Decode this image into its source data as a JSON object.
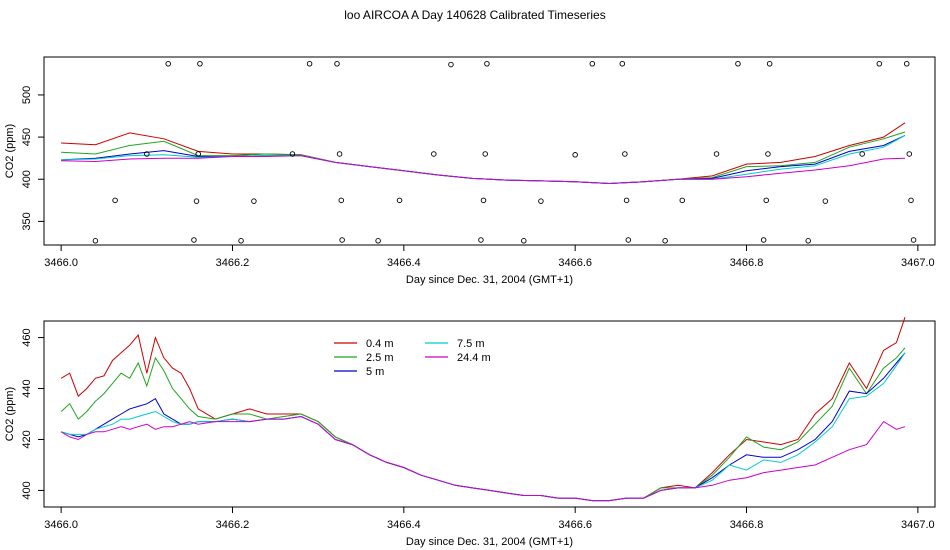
{
  "title": "loo AIRCOA A  Day 140628  Calibrated Timeseries",
  "colors": {
    "0.4 m": "#cc0000",
    "2.5 m": "#1fa51f",
    "5 m": "#0000cc",
    "7.5 m": "#00cccc",
    "24.4 m": "#cc00cc"
  },
  "chart_data": [
    {
      "type": "line",
      "xlabel": "Day since Dec. 31, 2004 (GMT+1)",
      "ylabel": "CO2 (ppm)",
      "xlim": [
        3465.98,
        3467.02
      ],
      "ylim": [
        322,
        545
      ],
      "xticks": [
        "3466.0",
        "3466.2",
        "3466.4",
        "3466.6",
        "3466.8",
        "3467.0"
      ],
      "yticks": [
        "350",
        "400",
        "450",
        "500"
      ],
      "x": [
        3466.0,
        3466.04,
        3466.08,
        3466.12,
        3466.16,
        3466.2,
        3466.24,
        3466.28,
        3466.32,
        3466.36,
        3466.4,
        3466.44,
        3466.48,
        3466.52,
        3466.56,
        3466.6,
        3466.64,
        3466.68,
        3466.72,
        3466.76,
        3466.8,
        3466.84,
        3466.88,
        3466.92,
        3466.96,
        3466.985
      ],
      "series": [
        {
          "name": "0.4 m",
          "values": [
            443,
            441,
            455,
            448,
            433,
            430,
            430,
            429,
            420,
            415,
            410,
            405,
            401,
            399,
            398,
            397,
            395,
            397,
            400,
            404,
            418,
            420,
            427,
            440,
            450,
            467
          ]
        },
        {
          "name": "2.5 m",
          "values": [
            432,
            430,
            440,
            445,
            428,
            428,
            430,
            429,
            420,
            415,
            410,
            405,
            401,
            399,
            398,
            397,
            395,
            397,
            400,
            402,
            415,
            416,
            420,
            438,
            448,
            456
          ]
        },
        {
          "name": "5 m",
          "values": [
            423,
            425,
            430,
            434,
            427,
            427,
            428,
            428,
            420,
            415,
            410,
            405,
            401,
            399,
            398,
            397,
            395,
            397,
            400,
            401,
            410,
            415,
            418,
            433,
            440,
            452
          ]
        },
        {
          "name": "7.5 m",
          "values": [
            423,
            424,
            428,
            429,
            426,
            427,
            428,
            428,
            420,
            415,
            410,
            405,
            401,
            399,
            398,
            397,
            395,
            397,
            400,
            400,
            406,
            412,
            416,
            430,
            438,
            452
          ]
        },
        {
          "name": "24.4 m",
          "values": [
            422,
            421,
            424,
            425,
            425,
            427,
            427,
            428,
            420,
            415,
            410,
            405,
            401,
            399,
            398,
            397,
            395,
            397,
            400,
            400,
            403,
            407,
            411,
            416,
            424,
            425
          ]
        }
      ],
      "markers": {
        "type": "scatter",
        "x": [
          3466.04,
          3466.063,
          3466.1,
          3466.125,
          3466.155,
          3466.158,
          3466.16,
          3466.162,
          3466.21,
          3466.225,
          3466.27,
          3466.29,
          3466.322,
          3466.325,
          3466.327,
          3466.328,
          3466.37,
          3466.395,
          3466.435,
          3466.455,
          3466.49,
          3466.493,
          3466.495,
          3466.497,
          3466.54,
          3466.56,
          3466.6,
          3466.62,
          3466.655,
          3466.658,
          3466.66,
          3466.662,
          3466.705,
          3466.725,
          3466.765,
          3466.79,
          3466.82,
          3466.823,
          3466.825,
          3466.827,
          3466.872,
          3466.892,
          3466.935,
          3466.955,
          3466.987,
          3466.99,
          3466.992,
          3466.995
        ],
        "y": [
          327,
          375,
          430,
          537,
          328,
          374,
          430,
          537,
          327,
          374,
          430,
          537,
          537,
          430,
          375,
          328,
          327,
          375,
          430,
          536,
          328,
          375,
          430,
          537,
          327,
          374,
          429,
          537,
          537,
          430,
          375,
          328,
          327,
          375,
          430,
          537,
          328,
          375,
          430,
          537,
          327,
          374,
          430,
          537,
          537,
          430,
          375,
          328
        ]
      }
    },
    {
      "type": "line",
      "xlabel": "Day since Dec. 31, 2004 (GMT+1)",
      "ylabel": "CO2 (ppm)",
      "xlim": [
        3465.98,
        3467.02
      ],
      "ylim": [
        393.5,
        466.5
      ],
      "xticks": [
        "3466.0",
        "3466.2",
        "3466.4",
        "3466.6",
        "3466.8",
        "3467.0"
      ],
      "yticks": [
        "400",
        "420",
        "440",
        "460"
      ],
      "legend": "top-center",
      "x": [
        3466.0,
        3466.01,
        3466.02,
        3466.03,
        3466.04,
        3466.05,
        3466.06,
        3466.07,
        3466.08,
        3466.09,
        3466.1,
        3466.11,
        3466.12,
        3466.13,
        3466.14,
        3466.15,
        3466.16,
        3466.18,
        3466.2,
        3466.22,
        3466.24,
        3466.26,
        3466.28,
        3466.3,
        3466.32,
        3466.34,
        3466.36,
        3466.38,
        3466.4,
        3466.42,
        3466.44,
        3466.46,
        3466.48,
        3466.5,
        3466.52,
        3466.54,
        3466.56,
        3466.58,
        3466.6,
        3466.62,
        3466.64,
        3466.66,
        3466.68,
        3466.7,
        3466.72,
        3466.74,
        3466.76,
        3466.78,
        3466.8,
        3466.82,
        3466.84,
        3466.86,
        3466.88,
        3466.9,
        3466.92,
        3466.94,
        3466.96,
        3466.975,
        3466.985
      ],
      "series": [
        {
          "name": "0.4 m",
          "values": [
            444,
            446,
            437,
            440,
            444,
            445,
            451,
            454,
            457,
            461,
            446,
            460,
            452,
            448,
            446,
            440,
            432,
            428,
            430,
            432,
            430,
            430,
            430,
            427,
            421,
            418,
            414,
            411,
            409,
            406,
            404,
            402,
            401,
            400,
            399,
            398,
            398,
            397,
            397,
            396,
            396,
            397,
            397,
            401,
            402,
            401,
            407,
            414,
            420,
            419,
            418,
            420,
            430,
            436,
            450,
            440,
            455,
            458,
            468
          ]
        },
        {
          "name": "2.5 m",
          "values": [
            431,
            434,
            428,
            431,
            435,
            438,
            442,
            446,
            444,
            450,
            441,
            452,
            447,
            440,
            436,
            432,
            429,
            428,
            430,
            430,
            428,
            429,
            430,
            427,
            421,
            418,
            414,
            411,
            409,
            406,
            404,
            402,
            401,
            400,
            399,
            398,
            398,
            397,
            397,
            396,
            396,
            397,
            397,
            401,
            401,
            401,
            406,
            413,
            421,
            417,
            416,
            419,
            426,
            433,
            448,
            438,
            448,
            452,
            456
          ]
        },
        {
          "name": "5 m",
          "values": [
            423,
            422,
            421,
            422,
            424,
            426,
            428,
            430,
            432,
            433,
            434,
            436,
            430,
            428,
            426,
            426,
            427,
            427,
            428,
            427,
            428,
            428,
            429,
            426,
            420,
            418,
            414,
            411,
            409,
            406,
            404,
            402,
            401,
            400,
            399,
            398,
            398,
            397,
            397,
            396,
            396,
            397,
            397,
            400,
            401,
            401,
            405,
            410,
            414,
            413,
            413,
            416,
            420,
            427,
            439,
            438,
            444,
            450,
            454
          ]
        },
        {
          "name": "7.5 m",
          "values": [
            423,
            422,
            422,
            422,
            424,
            425,
            426,
            428,
            428,
            429,
            430,
            431,
            429,
            427,
            426,
            426,
            427,
            427,
            428,
            427,
            428,
            428,
            429,
            426,
            420,
            418,
            414,
            411,
            409,
            406,
            404,
            402,
            401,
            400,
            399,
            398,
            398,
            397,
            397,
            396,
            396,
            397,
            397,
            400,
            401,
            401,
            404,
            410,
            408,
            412,
            411,
            414,
            419,
            425,
            436,
            437,
            442,
            449,
            454
          ]
        },
        {
          "name": "24.4 m",
          "values": [
            423,
            421,
            420,
            422,
            423,
            423,
            424,
            425,
            424,
            425,
            426,
            424,
            425,
            425,
            426,
            427,
            426,
            427,
            427,
            427,
            428,
            428,
            429,
            426,
            420,
            418,
            414,
            411,
            409,
            406,
            404,
            402,
            401,
            400,
            399,
            398,
            398,
            397,
            397,
            396,
            396,
            397,
            397,
            400,
            401,
            401,
            402,
            404,
            405,
            407,
            408,
            409,
            410,
            413,
            416,
            418,
            427,
            424,
            425
          ]
        }
      ]
    }
  ]
}
